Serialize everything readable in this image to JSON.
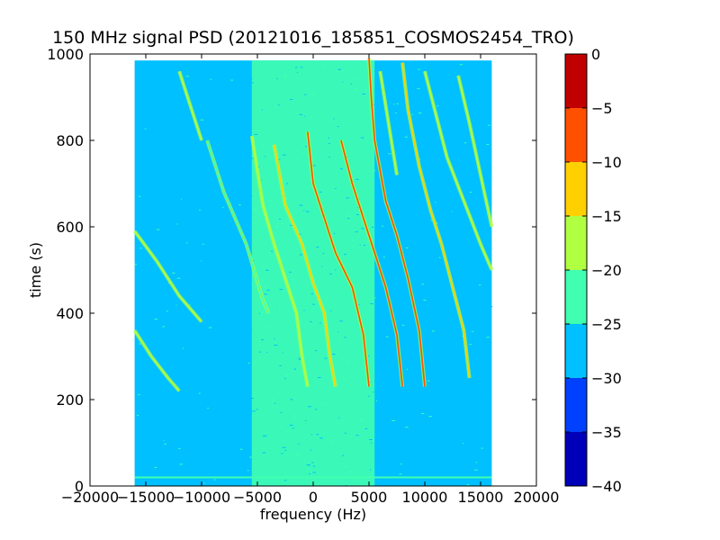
{
  "chart_data": {
    "type": "heatmap",
    "title": "150 MHz signal PSD (20121016_185851_COSMOS2454_TRO)",
    "xlabel": "frequency (Hz)",
    "ylabel": "time (s)",
    "xlim": [
      -20000,
      20000
    ],
    "ylim": [
      0,
      1000
    ],
    "x_ticks": [
      -20000,
      -15000,
      -10000,
      -5000,
      0,
      5000,
      10000,
      15000,
      20000
    ],
    "x_tick_labels": [
      "−20000",
      "−15000",
      "−10000",
      "−5000",
      "0",
      "5000",
      "10000",
      "15000",
      "20000"
    ],
    "y_ticks": [
      0,
      200,
      400,
      600,
      800,
      1000
    ],
    "y_tick_labels": [
      "0",
      "200",
      "400",
      "600",
      "800",
      "1000"
    ],
    "data_extent": {
      "x": [
        -16000,
        16000
      ],
      "y": [
        0,
        985
      ]
    },
    "noise_floor_band": {
      "x": [
        -5500,
        5500
      ]
    },
    "colorbar": {
      "levels": [
        -40,
        -35,
        -30,
        -25,
        -20,
        -15,
        -10,
        -5,
        0
      ],
      "tick_labels": [
        "−40",
        "−35",
        "−30",
        "−25",
        "−20",
        "−15",
        "−10",
        "−5",
        "0"
      ],
      "colors": [
        "#0000b8",
        "#0040ff",
        "#00c0ff",
        "#40ffb0",
        "#b0ff40",
        "#ffd000",
        "#ff5000",
        "#c00000"
      ]
    },
    "series": [
      {
        "level": -20,
        "points": [
          [
            -16000,
            590
          ],
          [
            -14000,
            520
          ],
          [
            -12000,
            440
          ],
          [
            -10000,
            380
          ]
        ]
      },
      {
        "level": -20,
        "points": [
          [
            -16000,
            360
          ],
          [
            -14500,
            300
          ],
          [
            -13000,
            250
          ],
          [
            -12000,
            220
          ]
        ]
      },
      {
        "level": -25,
        "points": [
          [
            -9500,
            800
          ],
          [
            -8000,
            680
          ],
          [
            -6000,
            560
          ],
          [
            -4500,
            430
          ],
          [
            -4000,
            400
          ]
        ]
      },
      {
        "level": -20,
        "points": [
          [
            -5500,
            810
          ],
          [
            -4500,
            650
          ],
          [
            -3500,
            560
          ],
          [
            -2500,
            480
          ],
          [
            -1500,
            400
          ],
          [
            -1000,
            300
          ],
          [
            -500,
            230
          ]
        ]
      },
      {
        "level": -15,
        "points": [
          [
            -3500,
            790
          ],
          [
            -2500,
            650
          ],
          [
            -1000,
            560
          ],
          [
            0,
            470
          ],
          [
            1000,
            400
          ],
          [
            1500,
            300
          ],
          [
            2000,
            230
          ]
        ]
      },
      {
        "level": -10,
        "points": [
          [
            -500,
            820
          ],
          [
            0,
            700
          ],
          [
            1000,
            620
          ],
          [
            2000,
            540
          ],
          [
            3500,
            460
          ],
          [
            4500,
            350
          ],
          [
            5000,
            230
          ]
        ]
      },
      {
        "level": -10,
        "points": [
          [
            2500,
            800
          ],
          [
            3500,
            700
          ],
          [
            4500,
            620
          ],
          [
            5500,
            540
          ],
          [
            6500,
            460
          ],
          [
            7500,
            350
          ],
          [
            8000,
            230
          ]
        ]
      },
      {
        "level": -10,
        "points": [
          [
            5000,
            990
          ],
          [
            5200,
            900
          ],
          [
            5500,
            800
          ],
          [
            6500,
            660
          ],
          [
            7500,
            580
          ],
          [
            8500,
            480
          ],
          [
            9500,
            360
          ],
          [
            10000,
            230
          ]
        ]
      },
      {
        "level": -15,
        "points": [
          [
            8000,
            980
          ],
          [
            8500,
            870
          ],
          [
            9500,
            740
          ],
          [
            10500,
            640
          ],
          [
            11500,
            560
          ],
          [
            12500,
            460
          ],
          [
            13500,
            360
          ],
          [
            14000,
            250
          ]
        ]
      },
      {
        "level": -20,
        "points": [
          [
            10000,
            960
          ],
          [
            11000,
            860
          ],
          [
            12000,
            760
          ],
          [
            13500,
            660
          ],
          [
            15000,
            560
          ],
          [
            16000,
            500
          ]
        ]
      },
      {
        "level": -20,
        "points": [
          [
            13000,
            950
          ],
          [
            14000,
            840
          ],
          [
            15000,
            720
          ],
          [
            16000,
            600
          ]
        ]
      },
      {
        "level": -20,
        "points": [
          [
            6000,
            960
          ],
          [
            6500,
            880
          ],
          [
            7000,
            800
          ],
          [
            7500,
            720
          ]
        ]
      },
      {
        "level": -20,
        "points": [
          [
            -12000,
            960
          ],
          [
            -11000,
            880
          ],
          [
            -10000,
            800
          ]
        ]
      }
    ]
  }
}
